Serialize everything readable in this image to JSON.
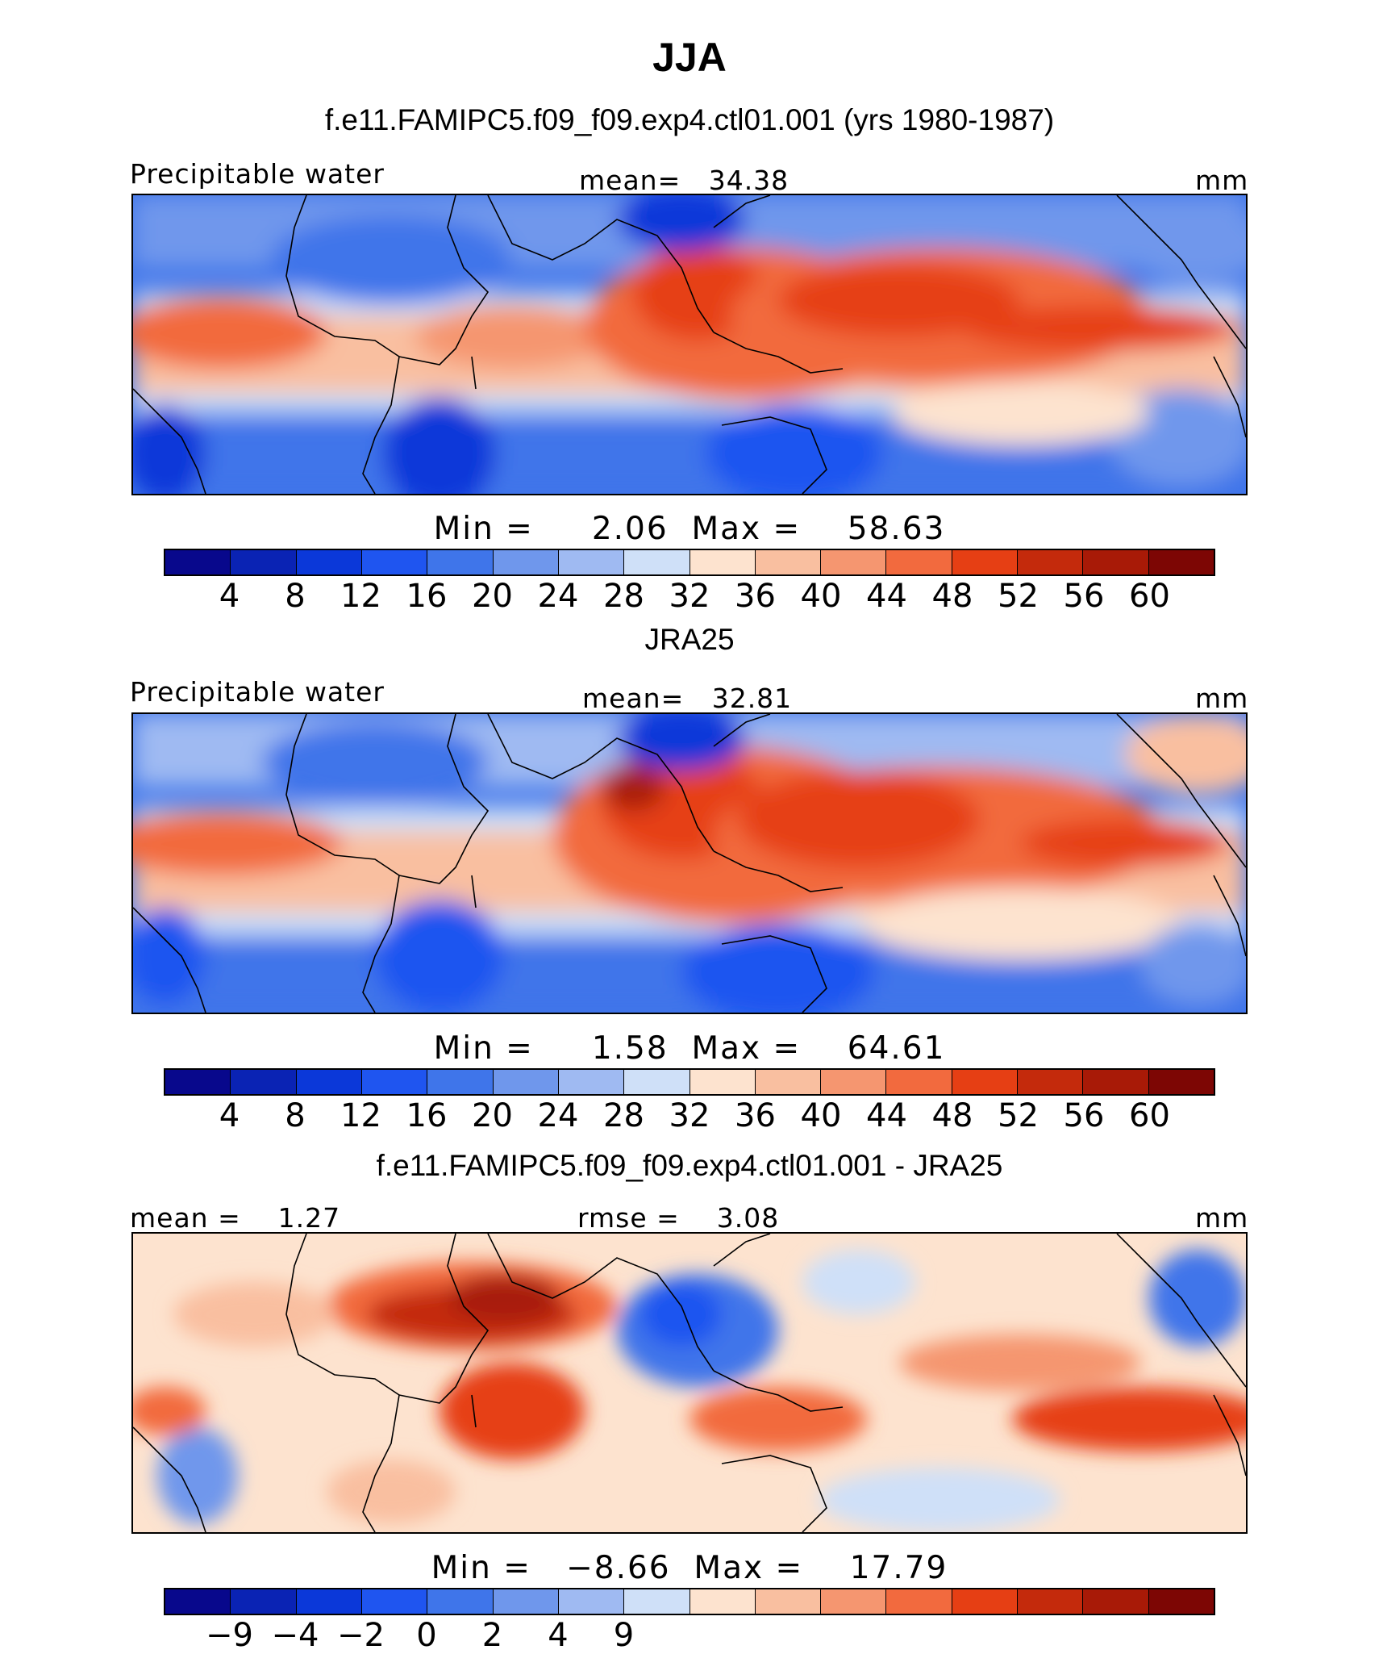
{
  "figure": {
    "season": "JJA"
  },
  "panels": [
    {
      "title": "f.e11.FAMIPC5.f09_f09.exp4.ctl01.001 (yrs 1980-1987)",
      "left_label": "Precipitable water",
      "center_label": "mean=   34.38",
      "units": "mm",
      "minmax": "Min =     2.06  Max =    58.63"
    },
    {
      "title": "JRA25",
      "left_label": "Precipitable water",
      "center_label": "mean=   32.81",
      "units": "mm",
      "minmax": "Min =     1.58  Max =    64.61"
    },
    {
      "title": "f.e11.FAMIPC5.f09_f09.exp4.ctl01.001 - JRA25",
      "left_label": "mean =    1.27",
      "center_label": "rmse =    3.08",
      "units": "mm",
      "minmax": "Min =   −8.66  Max =    17.79"
    }
  ],
  "chart_data": [
    {
      "type": "heatmap",
      "title": "f.e11.FAMIPC5.f09_f09.exp4.ctl01.001 (yrs 1980-1987)",
      "variable": "Precipitable water",
      "units": "mm",
      "mean": 34.38,
      "min": 2.06,
      "max": 58.63,
      "colorbar_ticks": [
        "4",
        "8",
        "12",
        "16",
        "20",
        "24",
        "28",
        "32",
        "36",
        "40",
        "44",
        "48",
        "52",
        "56",
        "60"
      ],
      "colorbar_colors": [
        "#08088c",
        "#0a23b4",
        "#0b38d9",
        "#1f55f0",
        "#3f75ea",
        "#6f97ec",
        "#9fbaf2",
        "#cfe0f8",
        "#fde3cf",
        "#f9bfa0",
        "#f59670",
        "#f26a3e",
        "#e63f14",
        "#c42a0c",
        "#a81a07",
        "#7d0604"
      ],
      "description": "Global JJA precipitable water, high over Indian Ocean, maritime continent and tropical Pacific"
    },
    {
      "type": "heatmap",
      "title": "JRA25",
      "variable": "Precipitable water",
      "units": "mm",
      "mean": 32.81,
      "min": 1.58,
      "max": 64.61,
      "colorbar_ticks": [
        "4",
        "8",
        "12",
        "16",
        "20",
        "24",
        "28",
        "32",
        "36",
        "40",
        "44",
        "48",
        "52",
        "56",
        "60"
      ],
      "colorbar_colors": [
        "#08088c",
        "#0a23b4",
        "#0b38d9",
        "#1f55f0",
        "#3f75ea",
        "#6f97ec",
        "#9fbaf2",
        "#cfe0f8",
        "#fde3cf",
        "#f9bfa0",
        "#f59670",
        "#f26a3e",
        "#e63f14",
        "#c42a0c",
        "#a81a07",
        "#7d0604"
      ]
    },
    {
      "type": "heatmap",
      "title": "f.e11.FAMIPC5.f09_f09.exp4.ctl01.001 - JRA25",
      "units": "mm",
      "mean": 1.27,
      "rmse": 3.08,
      "min": -8.66,
      "max": 17.79,
      "colorbar_ticks": [
        "−9",
        "−4",
        "−2",
        "0",
        "2",
        "4",
        "9"
      ],
      "colorbar_colors": [
        "#08088c",
        "#0a23b4",
        "#0b38d9",
        "#1f55f0",
        "#3f75ea",
        "#6f97ec",
        "#9fbaf2",
        "#cfe0f8",
        "#fde3cf",
        "#f9bfa0",
        "#f59670",
        "#f26a3e",
        "#e63f14",
        "#c42a0c",
        "#a81a07",
        "#7d0604"
      ]
    }
  ]
}
